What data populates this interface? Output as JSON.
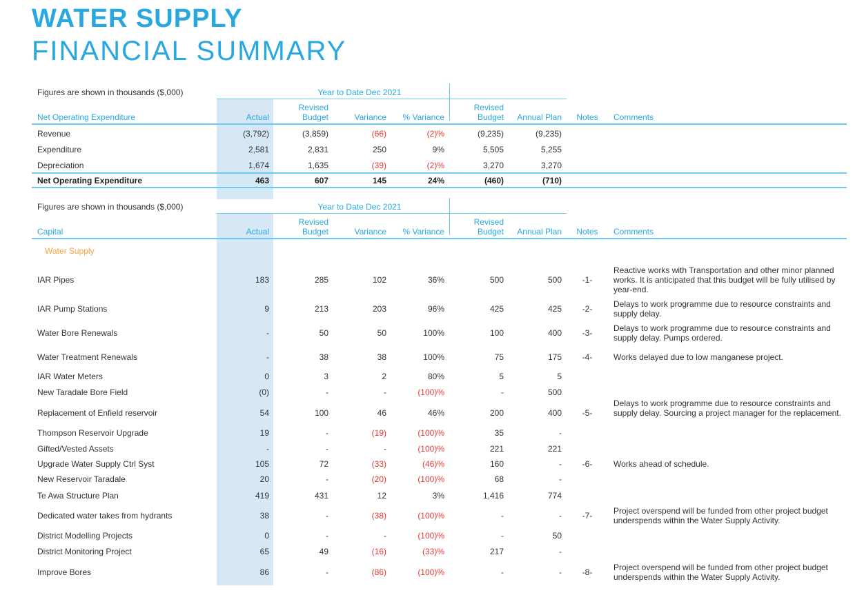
{
  "title_line1": "WATER SUPPLY",
  "title_line2": "FINANCIAL SUMMARY",
  "colors": {
    "accent": "#29a8e0",
    "negative": "#e53935",
    "category": "#f4a340",
    "highlight": "#d6e8f6"
  },
  "op": {
    "figures_note": "Figures are shown in thousands ($,000)",
    "ytd": "Year to Date Dec 2021",
    "headers": {
      "label": "Net Operating Expenditure",
      "actual": "Actual",
      "revised1": "Revised",
      "budget1": "Budget",
      "variance": "Variance",
      "pct": "% Variance",
      "revised2": "Revised",
      "budget2": "Budget",
      "annual": "Annual Plan",
      "notes": "Notes",
      "comments": "Comments"
    },
    "rows": [
      {
        "label": "Revenue",
        "actual": "(3,792)",
        "budget": "(3,859)",
        "variance": "(66)",
        "pct": "(2)%",
        "rev_budget": "(9,235)",
        "annual": "(9,235)"
      },
      {
        "label": "Expenditure",
        "actual": "2,581",
        "budget": "2,831",
        "variance": "250",
        "pct": "9%",
        "rev_budget": "5,505",
        "annual": "5,255"
      },
      {
        "label": "Depreciation",
        "actual": "1,674",
        "budget": "1,635",
        "variance": "(39)",
        "pct": "(2)%",
        "rev_budget": "3,270",
        "annual": "3,270"
      }
    ],
    "total": {
      "label": "Net Operating Expenditure",
      "actual": "463",
      "budget": "607",
      "variance": "145",
      "pct": "24%",
      "rev_budget": "(460)",
      "annual": "(710)"
    }
  },
  "cap": {
    "figures_note": "Figures are shown in thousands ($,000)",
    "ytd": "Year to Date Dec 2021",
    "headers": {
      "label": "Capital",
      "actual": "Actual",
      "revised1": "Revised",
      "budget1": "Budget",
      "variance": "Variance",
      "pct": "% Variance",
      "revised2": "Revised",
      "budget2": "Budget",
      "annual": "Annual Plan",
      "notes": "Notes",
      "comments": "Comments"
    },
    "category": "Water Supply",
    "rows": [
      {
        "label": "IAR Pipes",
        "actual": "183",
        "budget": "285",
        "variance": "102",
        "pct": "36%",
        "rev_budget": "500",
        "annual": "500",
        "note": "-1-",
        "comment": "Reactive works with Transportation and other minor planned works. It is anticipated that this budget will be fully utilised by year-end."
      },
      {
        "label": "IAR Pump Stations",
        "actual": "9",
        "budget": "213",
        "variance": "203",
        "pct": "96%",
        "rev_budget": "425",
        "annual": "425",
        "note": "-2-",
        "comment": "Delays to work programme due to resource constraints and supply delay."
      },
      {
        "label": "Water Bore Renewals",
        "actual": "-",
        "budget": "50",
        "variance": "50",
        "pct": "100%",
        "rev_budget": "100",
        "annual": "400",
        "note": "-3-",
        "comment": "Delays to work programme due to resource constraints and supply delay. Pumps ordered."
      },
      {
        "label": "Water Treatment Renewals",
        "actual": "-",
        "budget": "38",
        "variance": "38",
        "pct": "100%",
        "rev_budget": "75",
        "annual": "175",
        "note": "-4-",
        "comment": "Works delayed due to low manganese project."
      },
      {
        "label": "IAR Water Meters",
        "actual": "0",
        "budget": "3",
        "variance": "2",
        "pct": "80%",
        "rev_budget": "5",
        "annual": "5",
        "note": "",
        "comment": ""
      },
      {
        "label": "New Taradale Bore Field",
        "actual": "(0)",
        "budget": "-",
        "variance": "-",
        "pct": "(100)%",
        "rev_budget": "-",
        "annual": "500",
        "note": "",
        "comment": ""
      },
      {
        "label": "Replacement of Enfield reservoir",
        "actual": "54",
        "budget": "100",
        "variance": "46",
        "pct": "46%",
        "rev_budget": "200",
        "annual": "400",
        "note": "-5-",
        "comment": "Delays to work programme due to resource constraints and supply delay. Sourcing a project manager for the replacement."
      },
      {
        "label": "Thompson Reservoir Upgrade",
        "actual": "19",
        "budget": "-",
        "variance": "(19)",
        "pct": "(100)%",
        "rev_budget": "35",
        "annual": "-",
        "note": "",
        "comment": ""
      },
      {
        "label": "Gifted/Vested Assets",
        "actual": "-",
        "budget": "-",
        "variance": "-",
        "pct": "(100)%",
        "rev_budget": "221",
        "annual": "221",
        "note": "",
        "comment": ""
      },
      {
        "label": "Upgrade Water Supply Ctrl Syst",
        "actual": "105",
        "budget": "72",
        "variance": "(33)",
        "pct": "(46)%",
        "rev_budget": "160",
        "annual": "-",
        "note": "-6-",
        "comment": "Works ahead of schedule."
      },
      {
        "label": "New Reservoir Taradale",
        "actual": "20",
        "budget": "-",
        "variance": "(20)",
        "pct": "(100)%",
        "rev_budget": "68",
        "annual": "-",
        "note": "",
        "comment": ""
      },
      {
        "label": "Te Awa Structure Plan",
        "actual": "419",
        "budget": "431",
        "variance": "12",
        "pct": "3%",
        "rev_budget": "1,416",
        "annual": "774",
        "note": "",
        "comment": ""
      },
      {
        "label": "Dedicated water takes from hydrants",
        "actual": "38",
        "budget": "-",
        "variance": "(38)",
        "pct": "(100)%",
        "rev_budget": "-",
        "annual": "-",
        "note": "-7-",
        "comment": "Project overspend will be funded from other project budget underspends within the Water Supply Activity."
      },
      {
        "label": "District Modelling Projects",
        "actual": "0",
        "budget": "-",
        "variance": "-",
        "pct": "(100)%",
        "rev_budget": "-",
        "annual": "50",
        "note": "",
        "comment": ""
      },
      {
        "label": "District Monitoring Project",
        "actual": "65",
        "budget": "49",
        "variance": "(16)",
        "pct": "(33)%",
        "rev_budget": "217",
        "annual": "-",
        "note": "",
        "comment": ""
      },
      {
        "label": "Improve Bores",
        "actual": "86",
        "budget": "-",
        "variance": "(86)",
        "pct": "(100)%",
        "rev_budget": "-",
        "annual": "-",
        "note": "-8-",
        "comment": "Project overspend will be funded from other project budget underspends within the Water Supply Activity."
      }
    ]
  }
}
